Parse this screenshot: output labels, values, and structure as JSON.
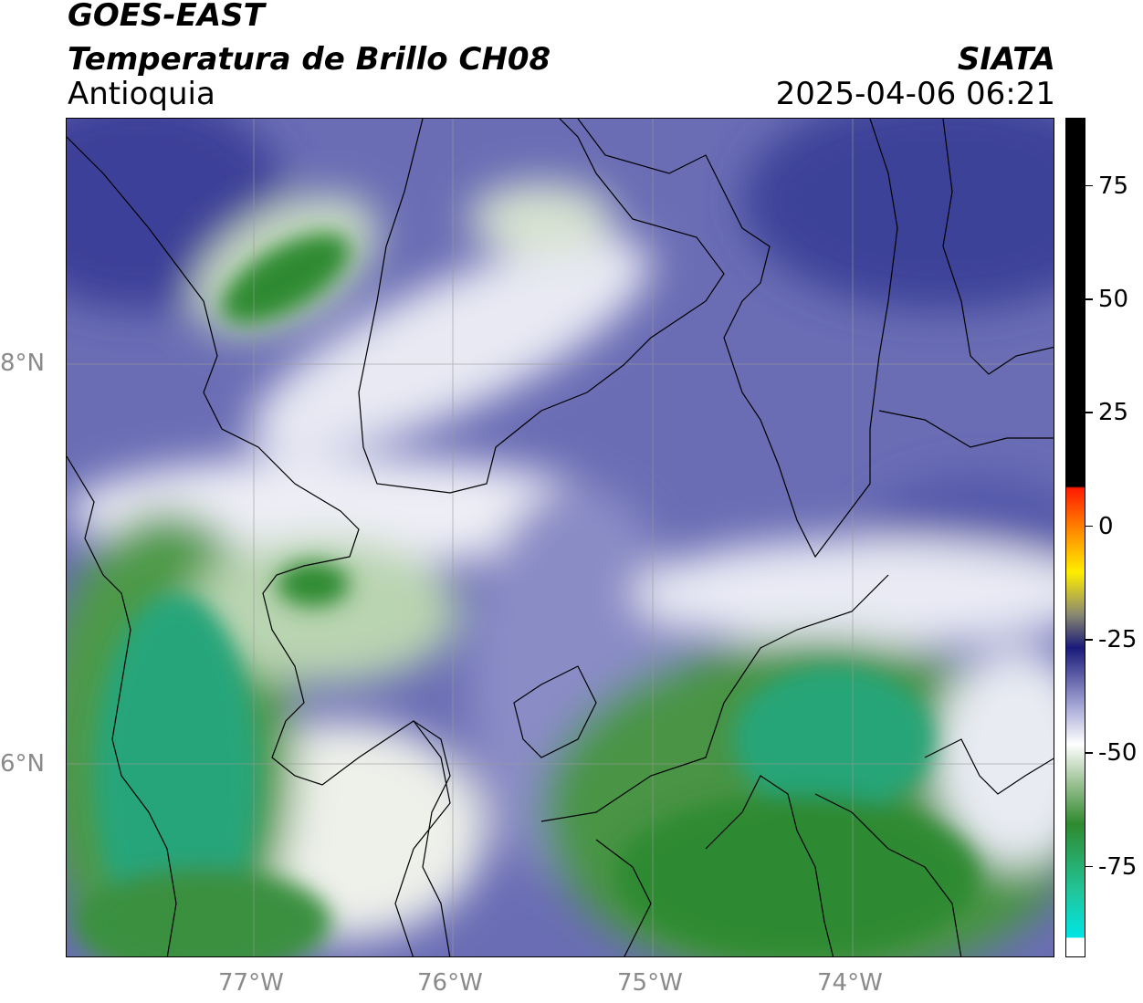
{
  "header": {
    "satellite": "GOES-EAST",
    "product": "Temperatura de Brillo CH08",
    "region": "Antioquia",
    "organization": "SIATA",
    "timestamp": "2025-04-06 06:21"
  },
  "map": {
    "latitude_labels": [
      "8°N",
      "6°N"
    ],
    "longitude_labels": [
      "77°W",
      "76°W",
      "75°W",
      "74°W"
    ],
    "palette": {
      "cold_green": "#2e8b2e",
      "teal": "#20b08a",
      "white": "#f2f3f8",
      "blue": "#6c70b6",
      "deep_blue": "#3b3f98"
    }
  },
  "colorbar": {
    "tick_labels": [
      "75",
      "50",
      "25",
      "0",
      "-25",
      "-50",
      "-75"
    ],
    "ticks": [
      75,
      50,
      25,
      0,
      -25,
      -50,
      -75
    ],
    "range": [
      -95,
      90
    ],
    "colors": {
      "top": "#000000",
      "red": "#ff2a00",
      "orange": "#ff9900",
      "yellow": "#ffee00",
      "gray": "#8a8a70",
      "navy": "#1a1a7a",
      "light_purple": "#a6a8d6",
      "white": "#ffffff",
      "green": "#2f8a2f",
      "teal": "#22c59a",
      "cyan": "#00e5e5"
    }
  }
}
